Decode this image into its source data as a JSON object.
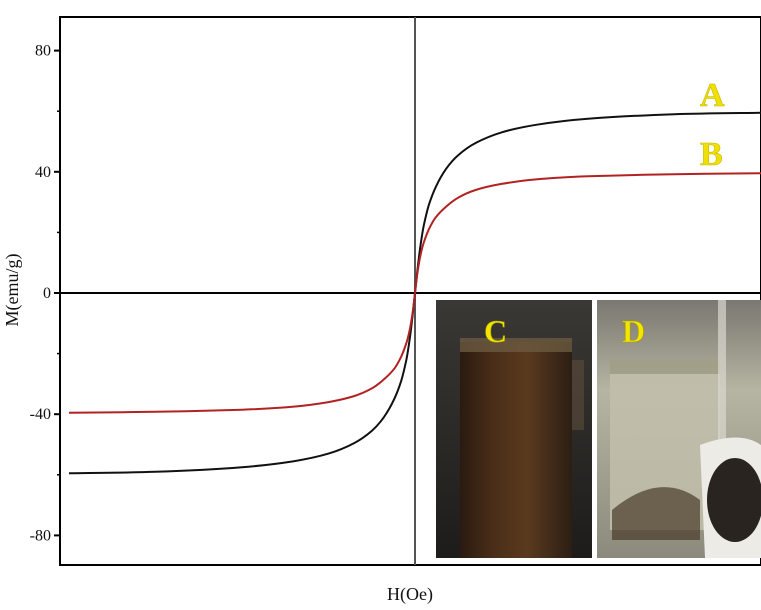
{
  "chart_data": {
    "type": "line",
    "title": "",
    "xlabel": "H(Oe)",
    "ylabel": "M(emu/g)",
    "ylim": [
      -90,
      92
    ],
    "xlim": [
      -20000,
      20000
    ],
    "yticks": [
      80,
      40,
      0,
      -40,
      -80
    ],
    "ytick_labels": [
      "80",
      "40",
      "0",
      "-40",
      "-80"
    ],
    "grid": false,
    "series": [
      {
        "name": "A",
        "color": "#111111",
        "x": [
          -20000,
          -15000,
          -10000,
          -7000,
          -5000,
          -3500,
          -2500,
          -1800,
          -1200,
          -800,
          -500,
          -300,
          -150,
          -60,
          0,
          60,
          150,
          300,
          500,
          800,
          1200,
          1800,
          2500,
          3500,
          5000,
          7000,
          10000,
          15000,
          20000
        ],
        "y": [
          -59.5,
          -59,
          -57.5,
          -55.5,
          -53,
          -49.5,
          -45.5,
          -41,
          -35,
          -29,
          -22,
          -15,
          -8,
          -3,
          0,
          3,
          8,
          15,
          22,
          29,
          35,
          41,
          45.5,
          49.5,
          53,
          55.5,
          57.5,
          59,
          59.5
        ]
      },
      {
        "name": "B",
        "color": "#b22222",
        "x": [
          -20000,
          -15000,
          -10000,
          -7000,
          -5000,
          -3500,
          -2500,
          -1800,
          -1200,
          -800,
          -500,
          -300,
          -150,
          -60,
          0,
          60,
          150,
          300,
          500,
          800,
          1200,
          1800,
          2500,
          3500,
          5000,
          7000,
          10000,
          15000,
          20000
        ],
        "y": [
          -39.5,
          -39.2,
          -38.5,
          -37.5,
          -36,
          -34,
          -31.5,
          -28.5,
          -25,
          -21,
          -16.5,
          -12,
          -7,
          -3,
          0,
          3,
          7,
          12,
          16.5,
          21,
          25,
          28.5,
          31.5,
          34,
          36,
          37.5,
          38.5,
          39.2,
          39.5
        ]
      }
    ],
    "annotations": [
      "A",
      "B"
    ]
  },
  "insets": [
    {
      "label": "C",
      "label_color": "#f2e600"
    },
    {
      "label": "D",
      "label_color": "#f2e600"
    }
  ]
}
